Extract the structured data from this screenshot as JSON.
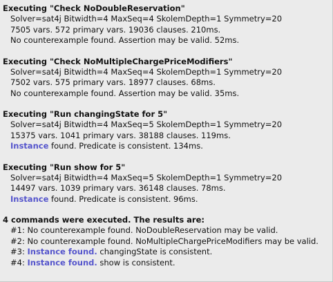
{
  "blocks": [
    {
      "heading": "Executing \"Check NoDoubleReservation\"",
      "solver": "Solver=sat4j Bitwidth=4 MaxSeq=4 SkolemDepth=1 Symmetry=20",
      "stats": "7505 vars. 572 primary vars. 19036 clauses. 210ms.",
      "result_link": "",
      "result_text": "No counterexample found. Assertion may be valid. 52ms."
    },
    {
      "heading": "Executing \"Check NoMultipleChargePriceModifiers\"",
      "solver": "Solver=sat4j Bitwidth=4 MaxSeq=4 SkolemDepth=1 Symmetry=20",
      "stats": "7502 vars. 575 primary vars. 18977 clauses. 68ms.",
      "result_link": "",
      "result_text": "No counterexample found. Assertion may be valid. 35ms."
    },
    {
      "heading": "Executing \"Run changingState for 5\"",
      "solver": "Solver=sat4j Bitwidth=4 MaxSeq=5 SkolemDepth=1 Symmetry=20",
      "stats": "15375 vars. 1041 primary vars. 38188 clauses. 119ms.",
      "result_link": "Instance",
      "result_text": " found. Predicate is consistent. 134ms."
    },
    {
      "heading": "Executing \"Run show for 5\"",
      "solver": "Solver=sat4j Bitwidth=4 MaxSeq=5 SkolemDepth=1 Symmetry=20",
      "stats": "14497 vars. 1039 primary vars. 36148 clauses. 78ms.",
      "result_link": "Instance",
      "result_text": " found. Predicate is consistent. 96ms."
    }
  ],
  "summary": {
    "heading": "4 commands were executed. The results are:",
    "items": [
      {
        "index": "#1: ",
        "link": "",
        "text": "No counterexample found. NoDoubleReservation may be valid."
      },
      {
        "index": "#2: ",
        "link": "",
        "text": "No counterexample found. NoMultipleChargePriceModifiers may be valid."
      },
      {
        "index": "#3: ",
        "link": "Instance found.",
        "text": " changingState is consistent."
      },
      {
        "index": "#4: ",
        "link": "Instance found.",
        "text": " show is consistent."
      }
    ]
  },
  "colors": {
    "background": "#ebebeb",
    "text": "#111111",
    "link": "#5555cc"
  }
}
